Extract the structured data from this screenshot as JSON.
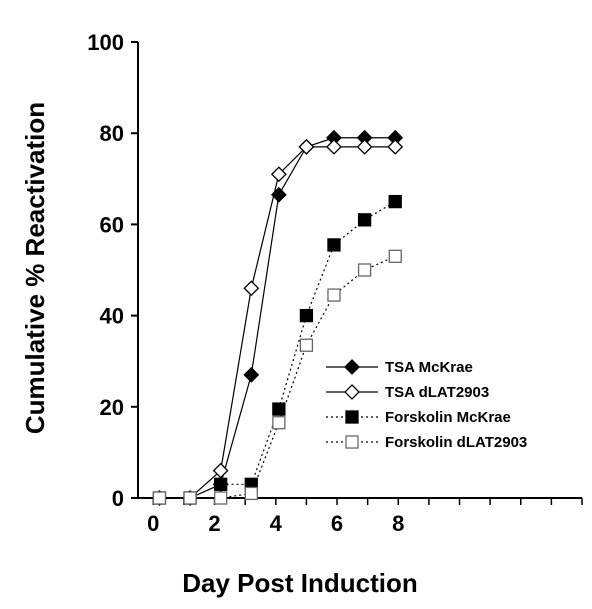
{
  "chart_data": {
    "type": "line",
    "title": "",
    "xlabel": "Day Post Induction",
    "ylabel": "Cumulative % Reactivation",
    "xlim": [
      -0.5,
      14
    ],
    "ylim": [
      0,
      100
    ],
    "xticks": [
      0,
      2,
      4,
      6,
      8
    ],
    "yticks": [
      0,
      20,
      40,
      60,
      80,
      100
    ],
    "grid": false,
    "legend_position": "lower-right",
    "series": [
      {
        "name": "TSA McKrae",
        "marker": "diamond-filled",
        "line": "solid",
        "x": [
          0.2,
          1.2,
          2.2,
          3.2,
          4.1,
          5.0,
          5.9,
          6.9,
          7.9
        ],
        "y": [
          0,
          0,
          3,
          27,
          66.5,
          77,
          79,
          79,
          79
        ]
      },
      {
        "name": "TSA dLAT2903",
        "marker": "diamond-open",
        "line": "solid",
        "x": [
          0.2,
          1.2,
          2.2,
          3.2,
          4.1,
          5.0,
          5.9,
          6.9,
          7.9
        ],
        "y": [
          0,
          0,
          6,
          46,
          71,
          77,
          77,
          77,
          77
        ]
      },
      {
        "name": "Forskolin McKrae",
        "marker": "square-filled",
        "line": "dotted",
        "x": [
          0.2,
          1.2,
          2.2,
          3.2,
          4.1,
          5.0,
          5.9,
          6.9,
          7.9
        ],
        "y": [
          0,
          0,
          3,
          3,
          19.5,
          40,
          55.5,
          61,
          65
        ]
      },
      {
        "name": "Forskolin dLAT2903",
        "marker": "square-open",
        "line": "dotted",
        "x": [
          0.2,
          1.2,
          2.2,
          3.2,
          4.1,
          5.0,
          5.9,
          6.9,
          7.9
        ],
        "y": [
          0,
          0,
          0,
          1,
          16.5,
          33.5,
          44.5,
          50,
          53
        ]
      }
    ]
  }
}
